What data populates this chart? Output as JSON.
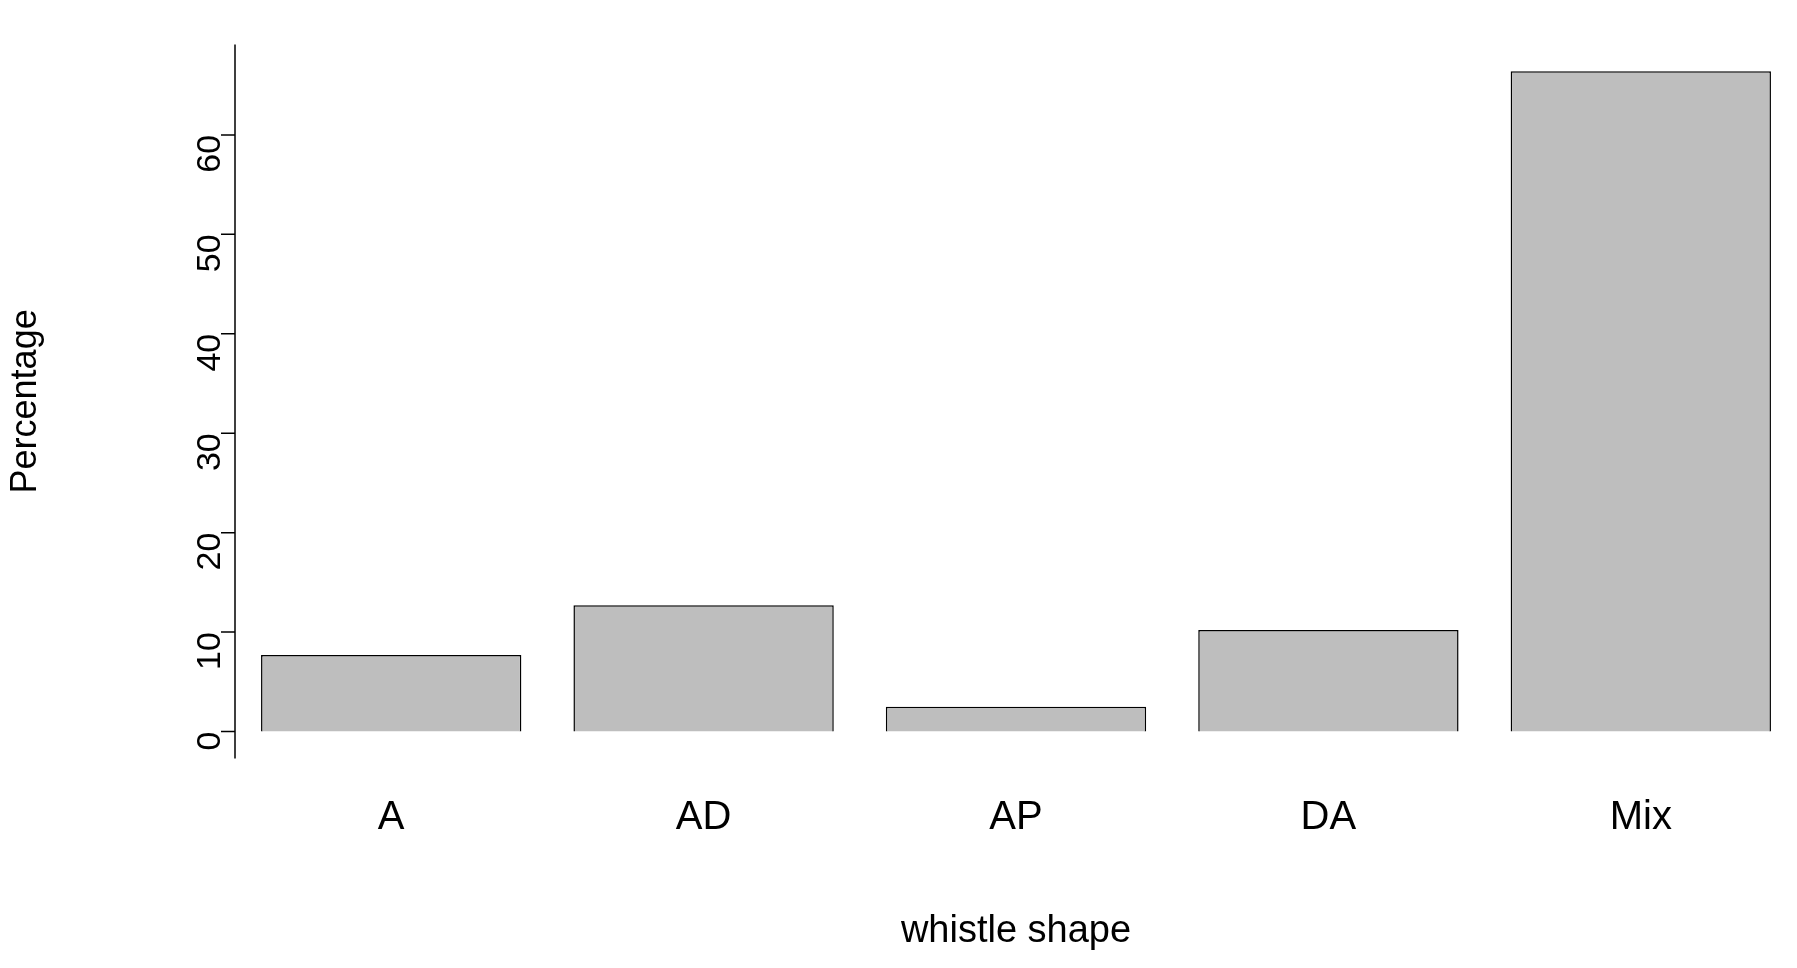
{
  "chart_data": {
    "type": "bar",
    "xlabel": "whistle shape",
    "ylabel": "Percentage",
    "categories": [
      "A",
      "AD",
      "AP",
      "DA",
      "Mix"
    ],
    "values": [
      7.7,
      12.7,
      2.5,
      10.2,
      66.4
    ],
    "color": "#bebebe",
    "ylim": [
      -2.7,
      69.1
    ],
    "yticks": [
      0,
      10,
      20,
      30,
      40,
      50,
      60
    ],
    "grid": false,
    "legend": false
  }
}
